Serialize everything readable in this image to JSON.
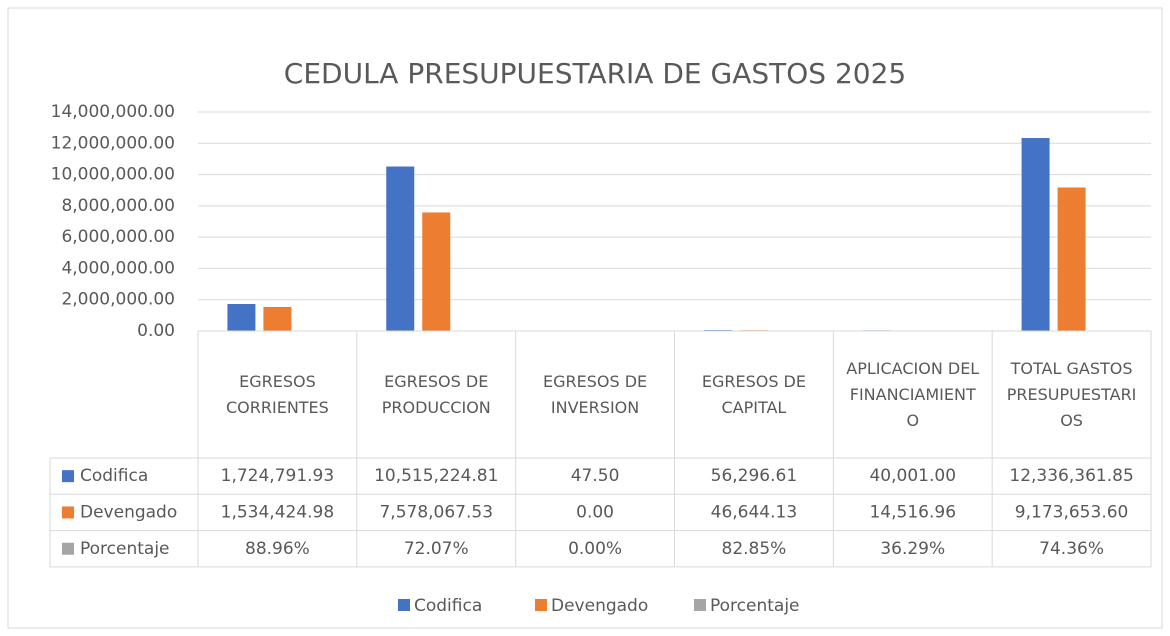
{
  "chart_data": {
    "type": "bar",
    "title": "CEDULA PRESUPUESTARIA DE GASTOS 2025",
    "categories": [
      "EGRESOS CORRIENTES",
      "EGRESOS DE PRODUCCION",
      "EGRESOS DE INVERSION",
      "EGRESOS DE CAPITAL",
      "APLICACION DEL FINANCIAMIENTO",
      "TOTAL GASTOS PRESUPUESTARIOS"
    ],
    "series": [
      {
        "name": "Codifica",
        "color": "#4472c4",
        "values": [
          1724791.93,
          10515224.81,
          47.5,
          56296.61,
          40001.0,
          12336361.85
        ],
        "value_labels": [
          "1,724,791.93",
          "10,515,224.81",
          "47.50",
          "56,296.61",
          "40,001.00",
          "12,336,361.85"
        ]
      },
      {
        "name": "Devengado",
        "color": "#ed7d31",
        "values": [
          1534424.98,
          7578067.53,
          0.0,
          46644.13,
          14516.96,
          9173653.6
        ],
        "value_labels": [
          "1,534,424.98",
          "7,578,067.53",
          "0.00",
          "46,644.13",
          "14,516.96",
          "9,173,653.60"
        ]
      },
      {
        "name": "Porcentaje",
        "color": "#a5a5a5",
        "values": [
          88.96,
          72.07,
          0.0,
          82.85,
          36.29,
          74.36
        ],
        "value_labels": [
          "88.96%",
          "72.07%",
          "0.00%",
          "82.85%",
          "36.29%",
          "74.36%"
        ]
      }
    ],
    "ylim": [
      0,
      14000000
    ],
    "yticks": [
      {
        "value": 0,
        "label": "0.00"
      },
      {
        "value": 2000000,
        "label": "2,000,000.00"
      },
      {
        "value": 4000000,
        "label": "4,000,000.00"
      },
      {
        "value": 6000000,
        "label": "6,000,000.00"
      },
      {
        "value": 8000000,
        "label": "8,000,000.00"
      },
      {
        "value": 10000000,
        "label": "10,000,000.00"
      },
      {
        "value": 12000000,
        "label": "12,000,000.00"
      },
      {
        "value": 14000000,
        "label": "14,000,000.00"
      }
    ],
    "grid": true,
    "legend": "bottom"
  }
}
